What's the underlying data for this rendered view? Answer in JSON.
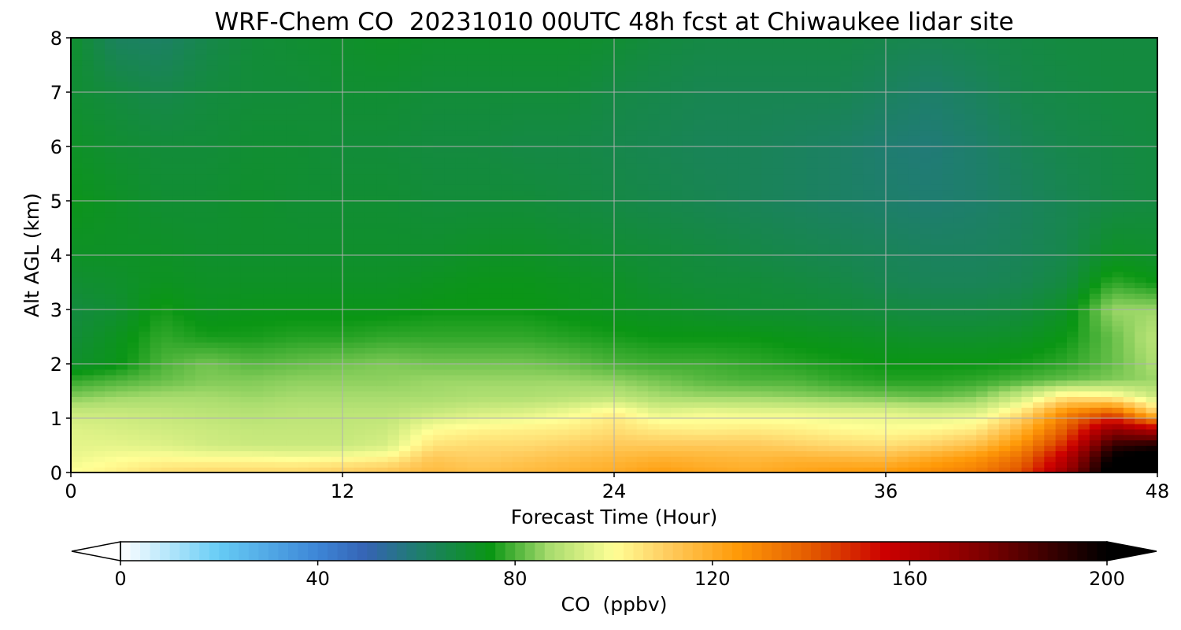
{
  "chart_data": {
    "type": "heatmap",
    "title": "WRF-Chem CO  20231010 00UTC 48h fcst at Chiwaukee lidar site",
    "xlabel": "Forecast Time (Hour)",
    "ylabel": "Alt AGL (km)",
    "xlim": [
      0,
      48
    ],
    "ylim": [
      0,
      8
    ],
    "xticks": [
      "0",
      "12",
      "24",
      "36",
      "48"
    ],
    "yticks": [
      "0",
      "1",
      "2",
      "3",
      "4",
      "5",
      "6",
      "7",
      "8"
    ],
    "grid": true,
    "x": [
      0,
      2,
      4,
      6,
      8,
      10,
      12,
      14,
      16,
      18,
      20,
      22,
      24,
      26,
      28,
      30,
      32,
      34,
      36,
      38,
      40,
      42,
      44,
      46,
      48
    ],
    "y": [
      0,
      0.1,
      0.3,
      0.5,
      0.8,
      1.1,
      1.4,
      1.7,
      2.0,
      2.5,
      3.0,
      3.5,
      4.0,
      5.0,
      6.0,
      7.0,
      8.0
    ],
    "z": [
      [
        100,
        103,
        107,
        108,
        108,
        108,
        110,
        112,
        116,
        114,
        116,
        118,
        120,
        124,
        122,
        120,
        122,
        124,
        125,
        128,
        132,
        142,
        170,
        205,
        205
      ],
      [
        99,
        102,
        105,
        106,
        106,
        106,
        108,
        110,
        115,
        113,
        115,
        117,
        119,
        122,
        120,
        119,
        121,
        122,
        122,
        126,
        130,
        140,
        165,
        205,
        205
      ],
      [
        97,
        99,
        100,
        99,
        99,
        98,
        99,
        101,
        112,
        110,
        112,
        114,
        116,
        118,
        117,
        116,
        117,
        116,
        115,
        120,
        125,
        135,
        160,
        200,
        205
      ],
      [
        96,
        96,
        95,
        93,
        92,
        92,
        92,
        94,
        106,
        108,
        108,
        110,
        112,
        112,
        112,
        112,
        110,
        108,
        107,
        110,
        115,
        128,
        150,
        190,
        195
      ],
      [
        95,
        94,
        93,
        92,
        91,
        91,
        91,
        92,
        100,
        102,
        103,
        104,
        107,
        104,
        103,
        104,
        103,
        101,
        100,
        101,
        104,
        118,
        140,
        170,
        160
      ],
      [
        92,
        92,
        91,
        90,
        89,
        90,
        90,
        90,
        92,
        94,
        95,
        98,
        103,
        96,
        98,
        97,
        97,
        96,
        96,
        94,
        95,
        106,
        130,
        140,
        110
      ],
      [
        84,
        86,
        87,
        87,
        86,
        87,
        87,
        87,
        87,
        88,
        88,
        89,
        90,
        87,
        86,
        86,
        85,
        84,
        83,
        82,
        84,
        92,
        105,
        102,
        92
      ],
      [
        78,
        80,
        82,
        84,
        84,
        85,
        85,
        85,
        86,
        86,
        86,
        86,
        85,
        83,
        81,
        80,
        80,
        78,
        77,
        77,
        78,
        80,
        82,
        84,
        86
      ],
      [
        71,
        74,
        80,
        83,
        81,
        82,
        83,
        84,
        83,
        83,
        83,
        82,
        80,
        79,
        79,
        78,
        77,
        76,
        75,
        75,
        75,
        76,
        78,
        82,
        88
      ],
      [
        69,
        73,
        78,
        76,
        76,
        77,
        77,
        78,
        78,
        78,
        78,
        77,
        76,
        75,
        75,
        75,
        74,
        73,
        72,
        71,
        71,
        72,
        75,
        82,
        90
      ],
      [
        68,
        70,
        76,
        73,
        74,
        74,
        74,
        74,
        75,
        75,
        75,
        74,
        73,
        72,
        71,
        70,
        70,
        69,
        68,
        67,
        67,
        68,
        72,
        86,
        86
      ],
      [
        70,
        71,
        73,
        72,
        72,
        72,
        72,
        72,
        73,
        74,
        74,
        73,
        72,
        70,
        69,
        69,
        68,
        67,
        65,
        64,
        64,
        65,
        68,
        78,
        75
      ],
      [
        72,
        72,
        72,
        71,
        71,
        71,
        71,
        71,
        71,
        72,
        72,
        71,
        70,
        69,
        68,
        67,
        66,
        65,
        64,
        63,
        63,
        64,
        66,
        72,
        71
      ],
      [
        74,
        72,
        70,
        70,
        71,
        70,
        70,
        70,
        69,
        69,
        69,
        68,
        67,
        66,
        65,
        64,
        63,
        62,
        61,
        60,
        61,
        63,
        65,
        67,
        68
      ],
      [
        72,
        70,
        69,
        69,
        70,
        70,
        69,
        69,
        68,
        68,
        67,
        67,
        66,
        65,
        64,
        64,
        63,
        62,
        60,
        59,
        61,
        64,
        66,
        67,
        68
      ],
      [
        70,
        68,
        66,
        68,
        69,
        69,
        70,
        70,
        69,
        69,
        69,
        69,
        67,
        66,
        65,
        65,
        65,
        65,
        63,
        61,
        63,
        66,
        67,
        68,
        68
      ],
      [
        71,
        63,
        62,
        66,
        69,
        70,
        71,
        72,
        71,
        71,
        71,
        71,
        70,
        68,
        67,
        67,
        67,
        67,
        66,
        65,
        66,
        67,
        68,
        68,
        68
      ]
    ],
    "colorbar": {
      "label": "CO  (ppbv)",
      "min": 0,
      "max": 200,
      "ticks": [
        "0",
        "40",
        "80",
        "120",
        "160",
        "200"
      ],
      "extend": "both",
      "under_color": "#ffffff",
      "over_color": "#000000",
      "stops": [
        {
          "v": 0,
          "c": "#ffffff"
        },
        {
          "v": 20,
          "c": "#66ccf5"
        },
        {
          "v": 40,
          "c": "#3d85d6"
        },
        {
          "v": 50,
          "c": "#3563b3"
        },
        {
          "v": 60,
          "c": "#1f7d70"
        },
        {
          "v": 75,
          "c": "#0a9614"
        },
        {
          "v": 87,
          "c": "#a8dc6e"
        },
        {
          "v": 100,
          "c": "#ffff96"
        },
        {
          "v": 110,
          "c": "#ffd064"
        },
        {
          "v": 125,
          "c": "#ff9a08"
        },
        {
          "v": 140,
          "c": "#e35a00"
        },
        {
          "v": 155,
          "c": "#cc0000"
        },
        {
          "v": 175,
          "c": "#7d0000"
        },
        {
          "v": 200,
          "c": "#000000"
        }
      ]
    }
  }
}
